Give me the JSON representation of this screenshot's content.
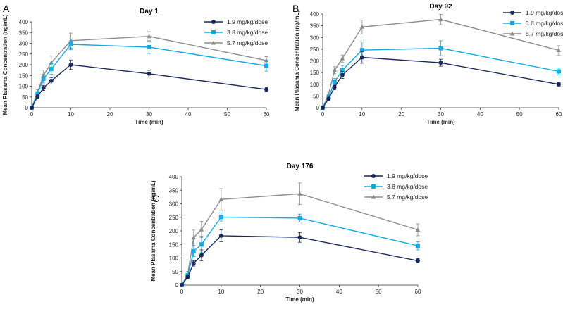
{
  "colors": {
    "low": "#1b2a5c",
    "mid": "#14a9e0",
    "high": "#8c8c8c"
  },
  "chart_data": [
    {
      "type": "line",
      "panel_label": "A",
      "title": "Day 1",
      "xlabel": "Time (min)",
      "ylabel": "Mean Plasama Concentration (ng/mL)",
      "xlim": [
        0,
        60
      ],
      "ylim": [
        0,
        400
      ],
      "xticks": [
        0,
        10,
        20,
        30,
        40,
        50,
        60
      ],
      "yticks": [
        0,
        50,
        100,
        150,
        200,
        250,
        300,
        350,
        400
      ],
      "legend_position": "top-right",
      "x": [
        0,
        1.5,
        3,
        5,
        10,
        30,
        60
      ],
      "series": [
        {
          "name": "1.9 mg/kg/dose",
          "marker": "circle",
          "color_key": "low",
          "values": [
            0,
            52,
            92,
            125,
            200,
            158,
            85
          ],
          "errors": [
            0,
            8,
            12,
            15,
            22,
            16,
            10
          ]
        },
        {
          "name": "3.8 mg/kg/dose",
          "marker": "square",
          "color_key": "mid",
          "values": [
            0,
            65,
            135,
            180,
            295,
            282,
            195
          ],
          "errors": [
            0,
            10,
            20,
            25,
            25,
            30,
            25
          ]
        },
        {
          "name": "5.7 mg/kg/dose",
          "marker": "triangle",
          "color_key": "high",
          "values": [
            0,
            72,
            150,
            210,
            312,
            332,
            220
          ],
          "errors": [
            0,
            12,
            25,
            30,
            35,
            22,
            18
          ]
        }
      ]
    },
    {
      "type": "line",
      "panel_label": "B",
      "title": "Day 92",
      "xlabel": "Time (min)",
      "ylabel": "Mean Plasama Concentration (ng/mL)",
      "xlim": [
        0,
        60
      ],
      "ylim": [
        0,
        400
      ],
      "xticks": [
        0,
        10,
        20,
        30,
        40,
        50,
        60
      ],
      "yticks": [
        0,
        50,
        100,
        150,
        200,
        250,
        300,
        350,
        400
      ],
      "legend_position": "top-right",
      "x": [
        0,
        1.5,
        3,
        5,
        10,
        30,
        60
      ],
      "series": [
        {
          "name": "1.9 mg/kg/dose",
          "marker": "circle",
          "color_key": "low",
          "values": [
            0,
            38,
            88,
            140,
            215,
            192,
            100
          ],
          "errors": [
            0,
            6,
            12,
            15,
            25,
            15,
            8
          ]
        },
        {
          "name": "3.8 mg/kg/dose",
          "marker": "square",
          "color_key": "mid",
          "values": [
            0,
            45,
            110,
            160,
            246,
            254,
            155
          ],
          "errors": [
            0,
            8,
            15,
            20,
            35,
            32,
            15
          ]
        },
        {
          "name": "5.7 mg/kg/dose",
          "marker": "triangle",
          "color_key": "high",
          "values": [
            0,
            58,
            160,
            210,
            345,
            377,
            245
          ],
          "errors": [
            0,
            10,
            15,
            15,
            30,
            22,
            20
          ]
        }
      ]
    },
    {
      "type": "line",
      "panel_label": "C",
      "title": "Day 176",
      "xlabel": "Time (min)",
      "ylabel": "Mean Plasama Concentration (ng/mL)",
      "xlim": [
        0,
        60
      ],
      "ylim": [
        0,
        400
      ],
      "xticks": [
        0,
        10,
        20,
        30,
        40,
        50,
        60
      ],
      "yticks": [
        0,
        50,
        100,
        150,
        200,
        250,
        300,
        350,
        400
      ],
      "legend_position": "top-right",
      "x": [
        0,
        1.5,
        3,
        5,
        10,
        30,
        60
      ],
      "series": [
        {
          "name": "1.9 mg/kg/dose",
          "marker": "circle",
          "color_key": "low",
          "values": [
            0,
            30,
            80,
            110,
            182,
            176,
            90
          ],
          "errors": [
            0,
            5,
            10,
            20,
            22,
            18,
            8
          ]
        },
        {
          "name": "3.8 mg/kg/dose",
          "marker": "square",
          "color_key": "mid",
          "values": [
            0,
            35,
            125,
            150,
            251,
            247,
            145
          ],
          "errors": [
            0,
            8,
            20,
            30,
            15,
            15,
            15
          ]
        },
        {
          "name": "5.7 mg/kg/dose",
          "marker": "triangle",
          "color_key": "high",
          "values": [
            0,
            40,
            175,
            205,
            316,
            337,
            204
          ],
          "errors": [
            0,
            10,
            28,
            30,
            40,
            40,
            22
          ]
        }
      ]
    }
  ]
}
